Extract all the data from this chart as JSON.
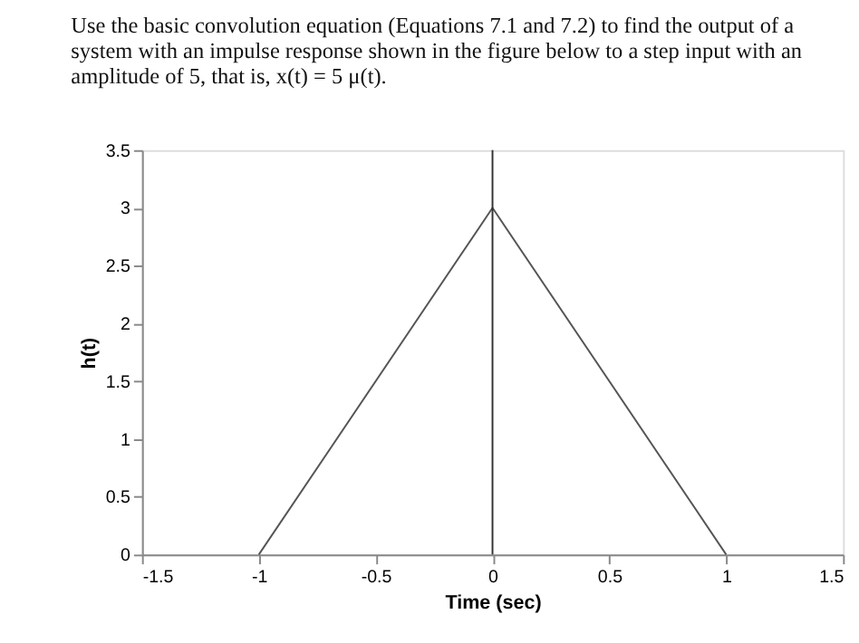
{
  "chart_data": {
    "type": "line",
    "title": "Use the basic convolution equation (Equations 7.1 and 7.2) to find the output of a system with an impulse response shown in the figure below to a step input with an amplitude of 5, that is, x(t) = 5 μ(t).",
    "x": [
      -1,
      0,
      1
    ],
    "series": [
      {
        "color": "#555555",
        "values": [
          0,
          3,
          0
        ]
      }
    ],
    "xlim": [
      -1.5,
      1.5
    ],
    "xticks": [
      -1.5,
      -1,
      -0.5,
      0,
      0.5,
      1,
      1.5
    ],
    "ylim": [
      0,
      3.5
    ],
    "yticks": [
      0,
      0.5,
      1,
      1.5,
      2,
      2.5,
      3,
      3.5
    ],
    "xlabel": "Time (sec)",
    "ylabel": "h(t)",
    "ref_lines": [
      {
        "axis": "x",
        "value": 0,
        "color": "#333333",
        "line_style": "solid"
      }
    ],
    "grid": false,
    "marker": "none",
    "line_style": "solid"
  }
}
